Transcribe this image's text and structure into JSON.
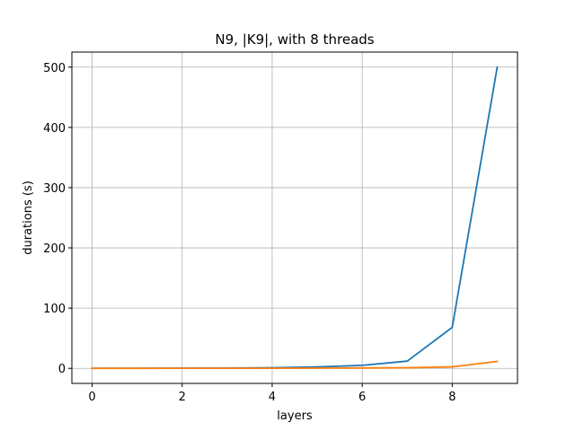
{
  "chart_data": {
    "type": "line",
    "title": "N9, |K9|, with 8 threads",
    "xlabel": "layers",
    "ylabel": "durations (s)",
    "xlim": [
      -0.45,
      9.45
    ],
    "ylim": [
      -25,
      525
    ],
    "xticks": [
      0,
      2,
      4,
      6,
      8
    ],
    "yticks": [
      0,
      100,
      200,
      300,
      400,
      500
    ],
    "grid": true,
    "x": [
      0,
      1,
      2,
      3,
      4,
      5,
      6,
      7,
      8,
      9
    ],
    "series": [
      {
        "color": "#1f77b4",
        "values": [
          0.1,
          0.2,
          0.3,
          0.5,
          1.0,
          2.3,
          5.0,
          12.0,
          68.0,
          500.0
        ]
      },
      {
        "color": "#ff7f0e",
        "values": [
          0.0,
          0.05,
          0.1,
          0.15,
          0.2,
          0.3,
          0.6,
          1.0,
          2.5,
          11.5
        ]
      }
    ]
  }
}
